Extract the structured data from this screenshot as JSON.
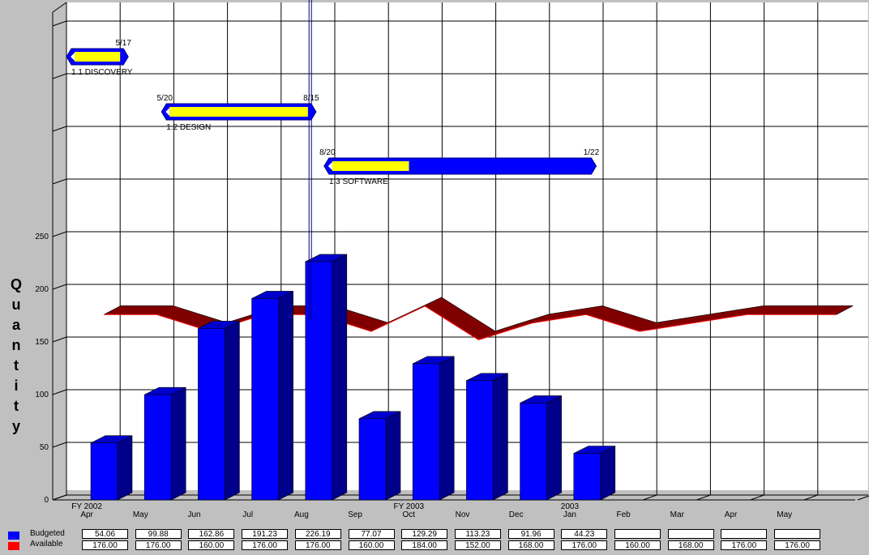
{
  "chart_data": {
    "type": "bar",
    "ylabel": "Quantity",
    "ylim": [
      0,
      250
    ],
    "y_ticks": [
      "0",
      "50",
      "100",
      "150",
      "200",
      "250"
    ],
    "categories": [
      "Apr",
      "May",
      "Jun",
      "Jul",
      "Aug",
      "Sep",
      "Oct",
      "Nov",
      "Dec",
      "Jan",
      "Feb",
      "Mar",
      "Apr",
      "May"
    ],
    "fiscal_labels": [
      {
        "index": 0,
        "text": "FY 2002"
      },
      {
        "index": 6,
        "text": "FY 2003"
      },
      {
        "index": 9,
        "text": "2003"
      }
    ],
    "series": [
      {
        "name": "Budgeted",
        "color": "#0000ff",
        "values": [
          54.06,
          99.88,
          162.86,
          191.23,
          226.19,
          77.07,
          129.29,
          113.23,
          91.96,
          44.23,
          null,
          null,
          null,
          null
        ],
        "labels": [
          "54.06",
          "99.88",
          "162.86",
          "191.23",
          "226.19",
          "77.07",
          "129.29",
          "113.23",
          "91.96",
          "44.23",
          "",
          "",
          "",
          ""
        ]
      },
      {
        "name": "Available",
        "color": "#ff0000",
        "values": [
          176.0,
          176.0,
          160.0,
          176.0,
          176.0,
          160.0,
          184.0,
          152.0,
          168.0,
          176.0,
          160.0,
          168.0,
          176.0,
          176.0
        ],
        "labels": [
          "176.00",
          "176.00",
          "160.00",
          "176.00",
          "176.00",
          "160.00",
          "184.00",
          "152.00",
          "168.00",
          "176.00",
          "160.00",
          "168.00",
          "176.00",
          "176.00"
        ]
      }
    ],
    "gantt": [
      {
        "label": "1.1  DISCOVERY",
        "start_date": "",
        "end_date": "5/17",
        "start_index": -0.15,
        "end_index": 1.0,
        "progress": 1.0
      },
      {
        "label": "1.2  DESIGN",
        "start_date": "5/20",
        "end_date": "8/15",
        "start_index": 1.62,
        "end_index": 4.5,
        "progress": 1.0
      },
      {
        "label": "1.3  SOFTWARE",
        "start_date": "8/20",
        "end_date": "1/22",
        "start_index": 4.65,
        "end_index": 9.72,
        "progress": 0.3
      }
    ],
    "status_date_index": 4.55,
    "grid": true,
    "legend_position": "bottom-left"
  },
  "colors": {
    "background": "#c0c0c0",
    "bar_front": "#0000ff",
    "bar_side": "#00008b",
    "bar_top": "#0000cd",
    "ribbon": "#800000",
    "gantt_outer": "#0000ff",
    "gantt_progress": "#ffff00"
  }
}
